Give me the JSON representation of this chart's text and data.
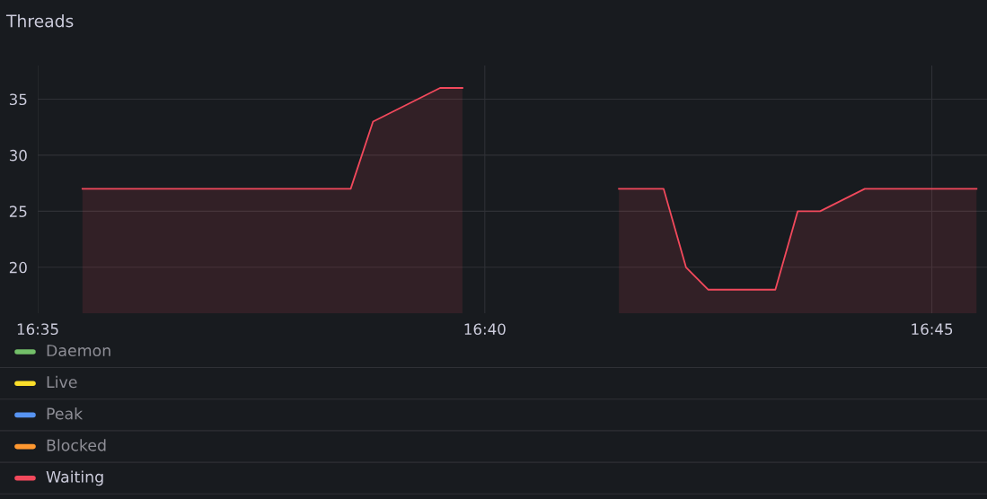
{
  "chart_data": {
    "type": "area",
    "title": "Threads",
    "x": [
      16.59167,
      16.64167,
      16.64583,
      16.65,
      16.65417,
      16.65833,
      16.6625,
      16.675,
      16.69167,
      16.7,
      16.70417,
      16.70833,
      16.72083,
      16.725,
      16.72917,
      16.73333,
      16.7375,
      16.75833
    ],
    "series": [
      {
        "name": "Daemon",
        "color": "#73bf69",
        "values": [
          null,
          null,
          null,
          null,
          null,
          null,
          null,
          null,
          null,
          null,
          null,
          null,
          null,
          null,
          null,
          null,
          null,
          null
        ]
      },
      {
        "name": "Live",
        "color": "#fade2a",
        "values": [
          null,
          null,
          null,
          null,
          null,
          null,
          null,
          null,
          null,
          null,
          null,
          null,
          null,
          null,
          null,
          null,
          null,
          null
        ]
      },
      {
        "name": "Peak",
        "color": "#5794f2",
        "values": [
          null,
          null,
          null,
          null,
          null,
          null,
          null,
          null,
          null,
          null,
          null,
          null,
          null,
          null,
          null,
          null,
          null,
          null
        ]
      },
      {
        "name": "Blocked",
        "color": "#ff9830",
        "values": [
          null,
          null,
          null,
          null,
          null,
          null,
          null,
          null,
          null,
          null,
          null,
          null,
          null,
          null,
          null,
          null,
          null,
          null
        ]
      },
      {
        "name": "Waiting",
        "color": "#f2495c",
        "values": [
          27,
          27,
          33,
          34,
          35,
          36,
          36,
          null,
          27,
          27,
          20,
          18,
          18,
          25,
          25,
          26,
          27,
          27
        ]
      }
    ],
    "xlim": [
      16.58333,
      16.76028
    ],
    "xticks": [
      {
        "value": 16.58333,
        "label": "16:35"
      },
      {
        "value": 16.66667,
        "label": "16:40"
      },
      {
        "value": 16.75,
        "label": "16:45"
      }
    ],
    "ylim": [
      15.9,
      38
    ],
    "yticks": [
      20,
      25,
      30,
      35
    ],
    "grid": true,
    "legend": "bottom"
  }
}
